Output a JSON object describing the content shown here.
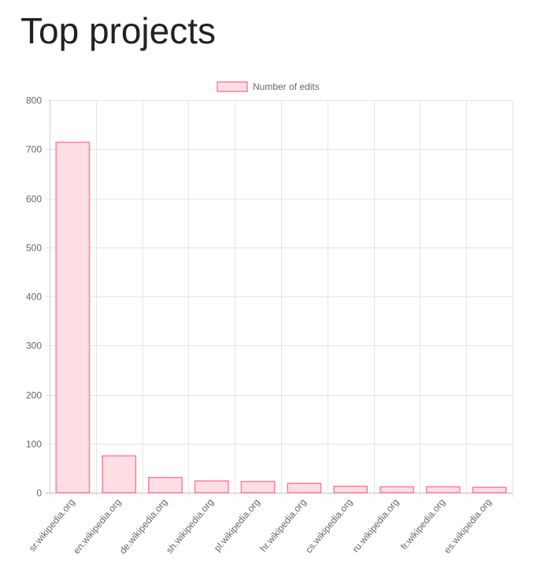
{
  "page": {
    "title": "Top projects"
  },
  "chart_data": {
    "type": "bar",
    "legend": {
      "label": "Number of edits",
      "position": "top-center"
    },
    "categories": [
      "sr.wikipedia.org",
      "en.wikipedia.org",
      "de.wikipedia.org",
      "sh.wikipedia.org",
      "pl.wikipedia.org",
      "hr.wikipedia.org",
      "cs.wikipedia.org",
      "ru.wikipedia.org",
      "fr.wikipedia.org",
      "es.wikipedia.org"
    ],
    "series": [
      {
        "name": "Number of edits",
        "values": [
          714,
          75,
          31,
          24,
          23,
          19,
          13,
          12,
          12,
          11
        ]
      }
    ],
    "ylim": [
      0,
      800
    ],
    "yticks": [
      0,
      100,
      200,
      300,
      400,
      500,
      600,
      700,
      800
    ],
    "grid": true,
    "colors": {
      "bar_fill": "#ffdfe5",
      "bar_stroke": "#ff7f9a",
      "grid": "#e5e5e5",
      "axis": "#cfcfcf",
      "tick_text": "#666666"
    }
  }
}
